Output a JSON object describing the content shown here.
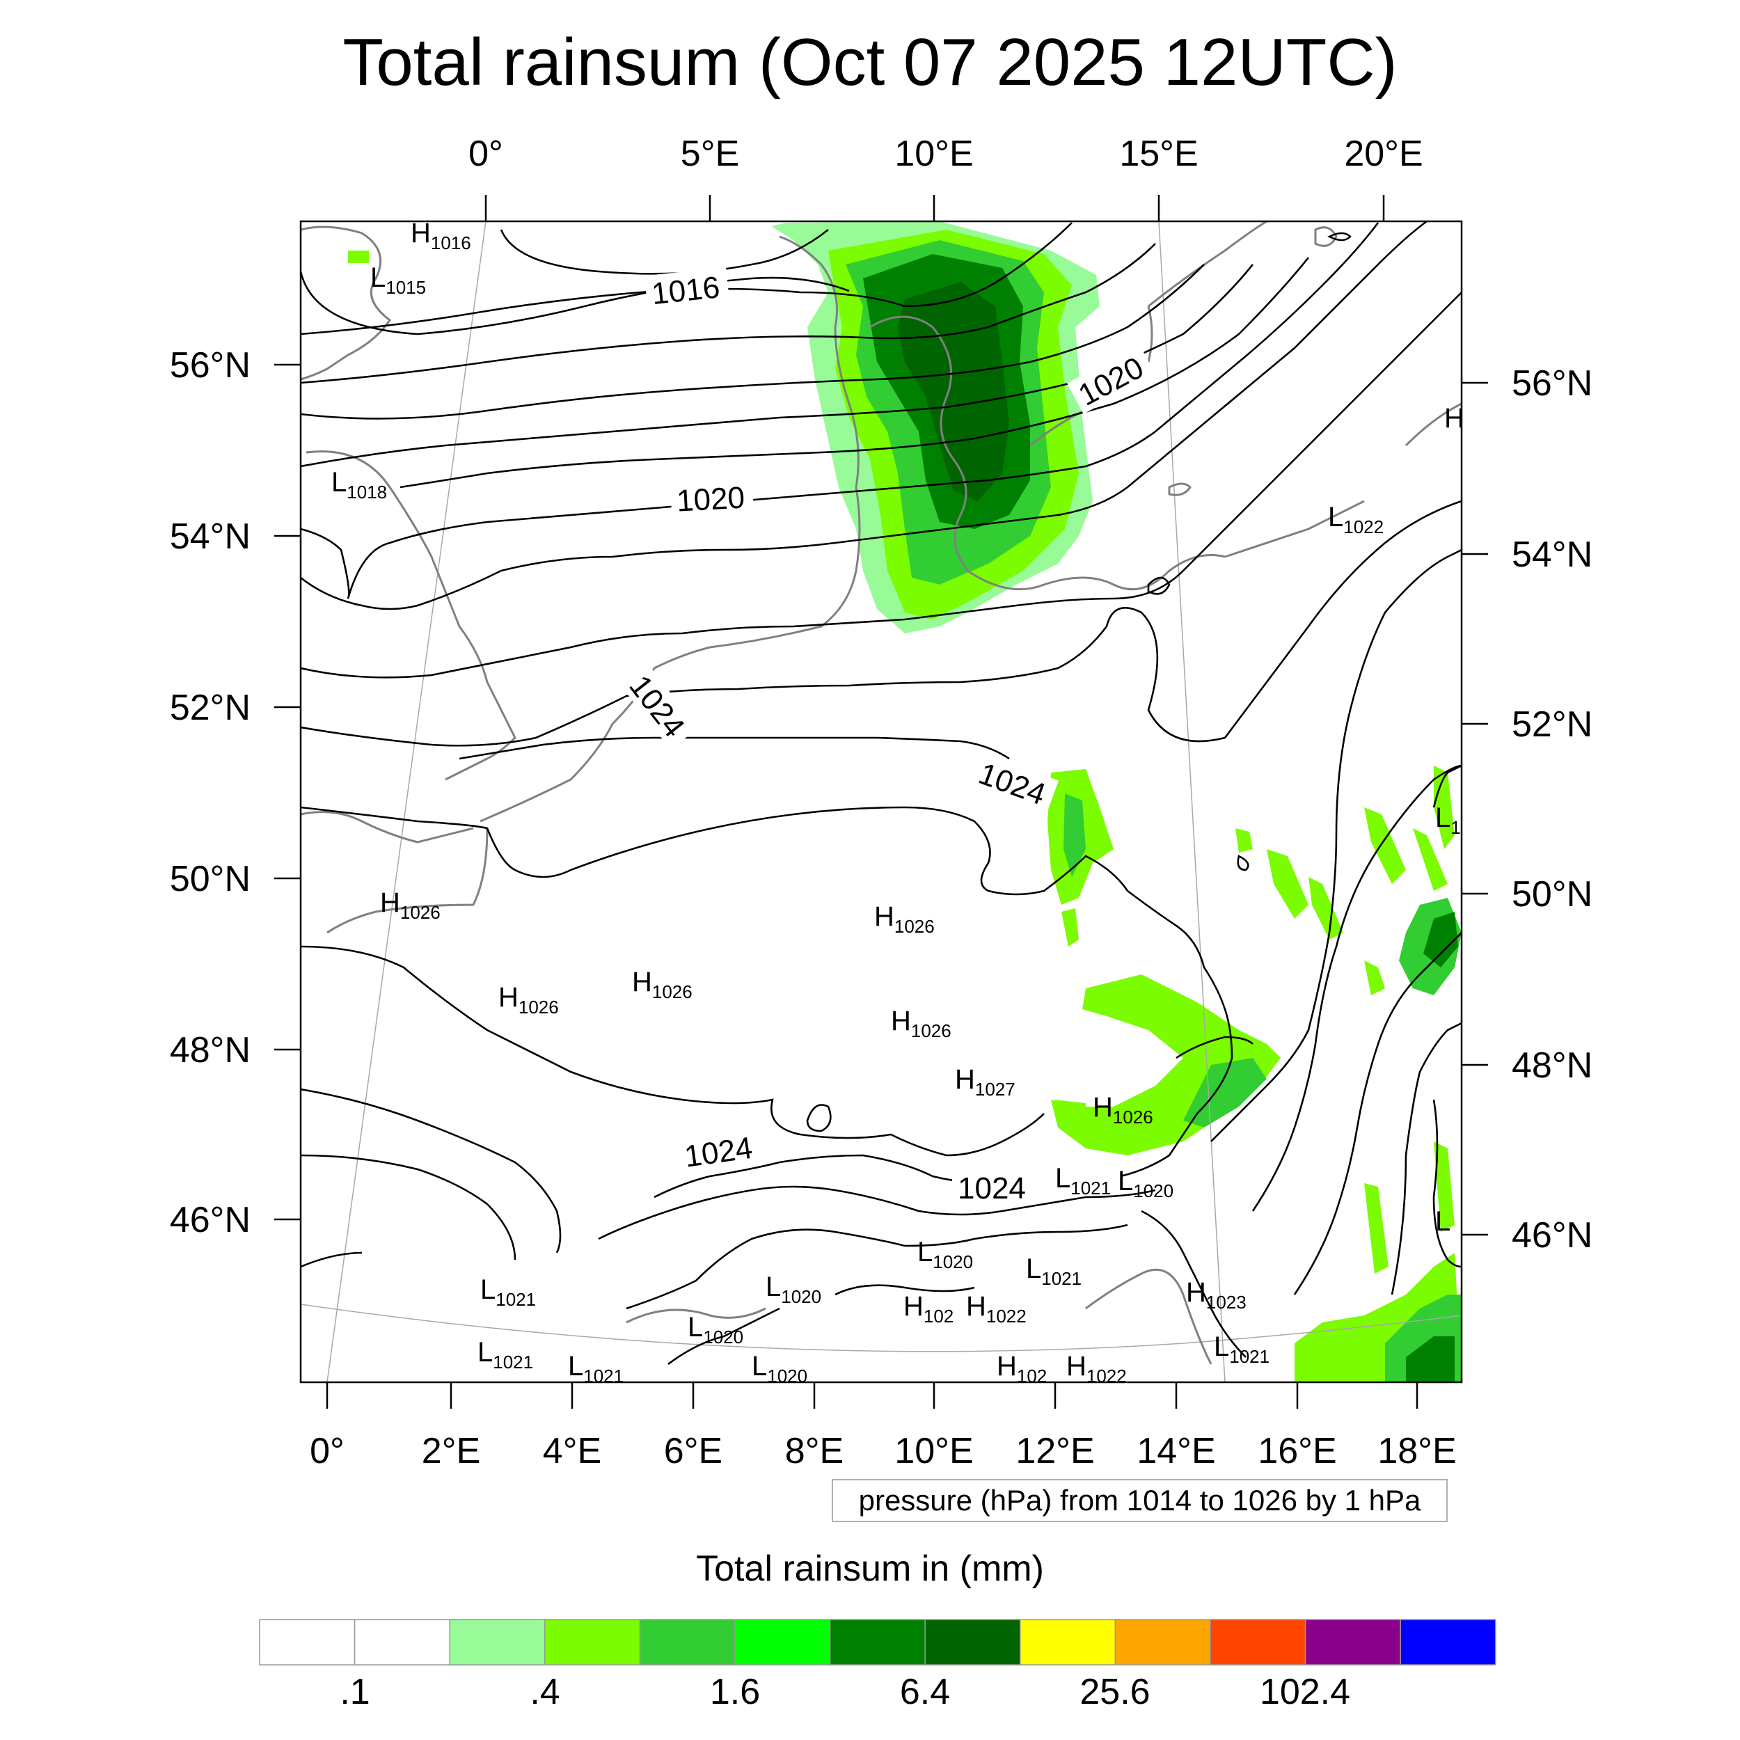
{
  "title": "Total rainsum (Oct 07 2025 12UTC)",
  "contour_note": "pressure (hPa) from 1014 to 1026 by 1 hPa",
  "colorbar": {
    "title": "Total rainsum in (mm)",
    "colors": [
      "#ffffff",
      "#ffffff",
      "#98fb98",
      "#7cfc00",
      "#32cd32",
      "#00ff00",
      "#008000",
      "#006400",
      "#ffff00",
      "#ffa500",
      "#ff4500",
      "#8b008b",
      "#0000ff"
    ],
    "labels": [
      ".1",
      ".4",
      "1.6",
      "6.4",
      "25.6",
      "102.4"
    ]
  },
  "axes": {
    "top_lon": [
      "0°",
      "5°E",
      "10°E",
      "15°E",
      "20°E"
    ],
    "bottom_lon": [
      "0°",
      "2°E",
      "4°E",
      "6°E",
      "8°E",
      "10°E",
      "12°E",
      "14°E",
      "16°E",
      "18°E"
    ],
    "left_lat": [
      "56°N",
      "54°N",
      "52°N",
      "50°N",
      "48°N",
      "46°N"
    ],
    "right_lat": [
      "56°N",
      "54°N",
      "52°N",
      "50°N",
      "48°N",
      "46°N"
    ]
  },
  "contour_labels": [
    "1016",
    "1020",
    "1020",
    "1024",
    "1024",
    "1024",
    "1024"
  ],
  "pressure_centers": [
    {
      "letter": "H",
      "value": "1016"
    },
    {
      "letter": "L",
      "value": "1015"
    },
    {
      "letter": "L",
      "value": "1018"
    },
    {
      "letter": "L",
      "value": "1022"
    },
    {
      "letter": "H",
      "value": ""
    },
    {
      "letter": "L",
      "value": "1"
    },
    {
      "letter": "H",
      "value": "1026"
    },
    {
      "letter": "H",
      "value": "1026"
    },
    {
      "letter": "H",
      "value": "1026"
    },
    {
      "letter": "H",
      "value": "1026"
    },
    {
      "letter": "H",
      "value": "1026"
    },
    {
      "letter": "H",
      "value": "1027"
    },
    {
      "letter": "H",
      "value": "1026"
    },
    {
      "letter": "L",
      "value": "1021"
    },
    {
      "letter": "L",
      "value": "1020"
    },
    {
      "letter": "L",
      "value": "1020"
    },
    {
      "letter": "L",
      "value": "1021"
    },
    {
      "letter": "L",
      "value": "1020"
    },
    {
      "letter": "H",
      "value": "102"
    },
    {
      "letter": "H",
      "value": "1022"
    },
    {
      "letter": "H",
      "value": "1023"
    },
    {
      "letter": "L",
      "value": "1021"
    },
    {
      "letter": "L",
      "value": "1020"
    },
    {
      "letter": "L",
      "value": "1021"
    },
    {
      "letter": "L",
      "value": "1021"
    },
    {
      "letter": "L",
      "value": "1021"
    },
    {
      "letter": "L",
      "value": "1020"
    },
    {
      "letter": "H",
      "value": "102"
    },
    {
      "letter": "H",
      "value": "1022"
    },
    {
      "letter": "L",
      "value": ""
    }
  ]
}
